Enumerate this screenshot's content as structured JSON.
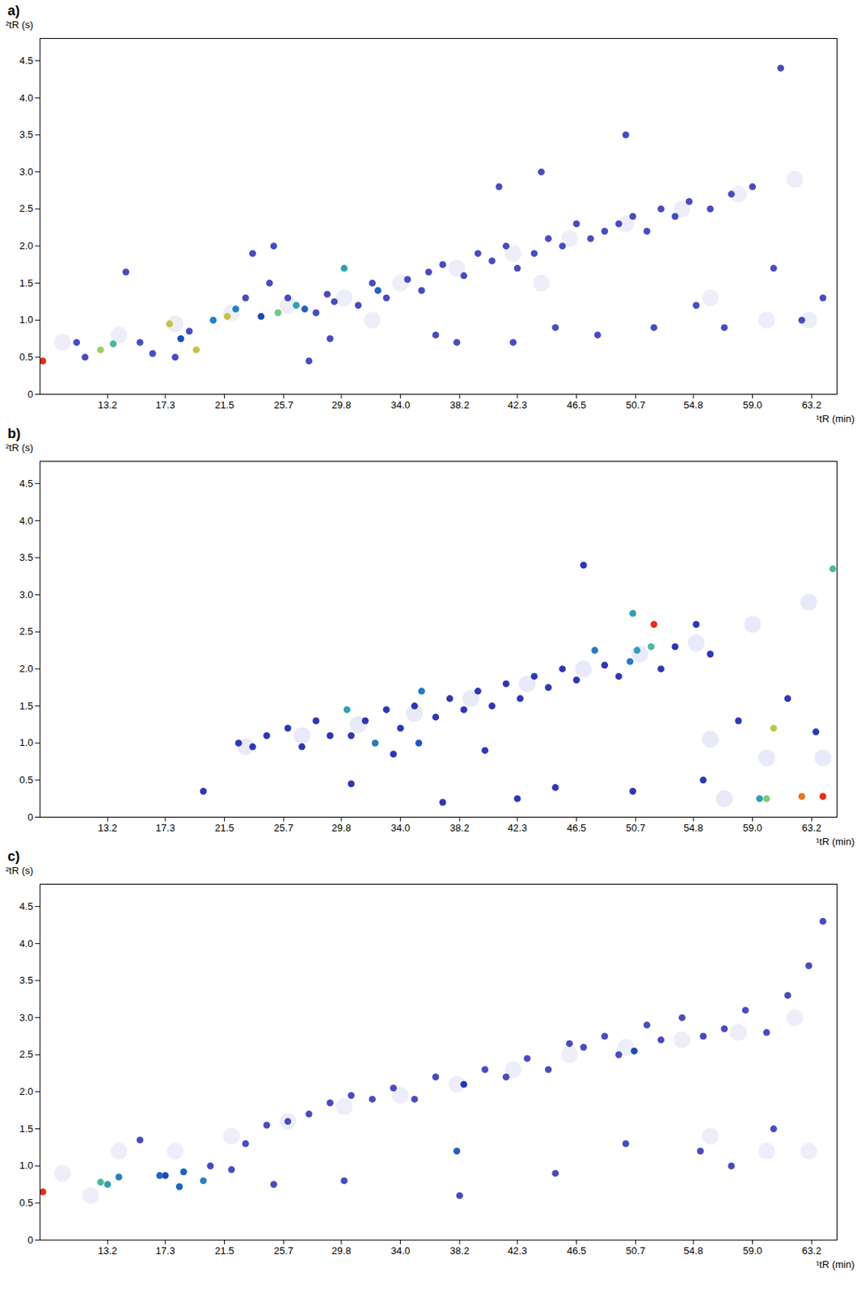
{
  "chart_data": [
    {
      "type": "scatter",
      "title": "a)",
      "x_label": "¹tR (min)",
      "y_label": "²tR (s)",
      "xlim": [
        8.4,
        65.0
      ],
      "ylim": [
        0,
        4.8
      ],
      "xticks": [
        13.2,
        17.3,
        21.5,
        25.7,
        29.8,
        {
          "value": 34,
          "label": "34.0"
        },
        38.2,
        42.3,
        46.5,
        50.7,
        54.8,
        {
          "value": 59,
          "label": "59.0"
        },
        63.2
      ],
      "yticks": [
        0,
        0.5,
        {
          "value": 1,
          "label": "1.0"
        },
        1.5,
        {
          "value": 2,
          "label": "2.0"
        },
        2.5,
        {
          "value": 3,
          "label": "3.0"
        },
        3.5,
        {
          "value": 4,
          "label": "4.0"
        },
        4.5
      ],
      "x": [
        8.6,
        12.7,
        13.6,
        17.6,
        18.4,
        19.5,
        20.7,
        21.7,
        22.3,
        24.1,
        25.3,
        26.6,
        27.2,
        30.0,
        32.4,
        11.0,
        11.6,
        15.5,
        16.4,
        18.0,
        19.0,
        23.0,
        23.5,
        24.7,
        26.0,
        28.0,
        28.8,
        29.3,
        31.0,
        32.0,
        33.0,
        34.5,
        35.5,
        36.0,
        37.0,
        38.5,
        39.5,
        40.5,
        41.5,
        42.3,
        43.5,
        44.5,
        45.5,
        46.5,
        47.5,
        48.5,
        49.5,
        50.5,
        51.5,
        52.5,
        53.5,
        54.5,
        56.0,
        57.5,
        59.0,
        61.0,
        50.0,
        44.0,
        41.0,
        36.5,
        38.0,
        42.0,
        45.0,
        48.0,
        52.0,
        55.0,
        57.0,
        60.5,
        62.5,
        64.0,
        29.0,
        14.5,
        25.0,
        27.5,
        10,
        14,
        18,
        22,
        26,
        30,
        34,
        38,
        42,
        46,
        50,
        54,
        58,
        62,
        56,
        60,
        63,
        44,
        32
      ],
      "y": [
        0.45,
        0.6,
        0.68,
        0.95,
        0.75,
        0.6,
        1.0,
        1.05,
        1.15,
        1.05,
        1.1,
        1.2,
        1.15,
        1.7,
        1.4,
        0.7,
        0.5,
        0.7,
        0.55,
        0.5,
        0.85,
        1.3,
        1.9,
        1.5,
        1.3,
        1.1,
        1.35,
        1.25,
        1.2,
        1.5,
        1.3,
        1.55,
        1.4,
        1.65,
        1.75,
        1.6,
        1.9,
        1.8,
        2.0,
        1.7,
        1.9,
        2.1,
        2.0,
        2.3,
        2.1,
        2.2,
        2.3,
        2.4,
        2.2,
        2.5,
        2.4,
        2.6,
        2.5,
        2.7,
        2.8,
        4.4,
        3.5,
        3.0,
        2.8,
        0.8,
        0.7,
        0.7,
        0.9,
        0.8,
        0.9,
        1.2,
        0.9,
        1.7,
        1.0,
        1.3,
        0.75,
        1.65,
        2.0,
        0.45,
        0.7,
        0.8,
        0.95,
        1.1,
        1.2,
        1.3,
        1.5,
        1.7,
        1.9,
        2.1,
        2.3,
        2.5,
        2.7,
        2.9,
        1.3,
        1.0,
        1.0,
        1.5,
        1.0
      ],
      "intensity": [
        100,
        80,
        70,
        85,
        50,
        85,
        60,
        85,
        60,
        50,
        75,
        65,
        55,
        65,
        55,
        35,
        35,
        35,
        35,
        35,
        35,
        35,
        35,
        35,
        35,
        35,
        35,
        35,
        35,
        35,
        35,
        35,
        35,
        35,
        35,
        35,
        35,
        35,
        35,
        35,
        35,
        35,
        35,
        35,
        35,
        35,
        35,
        35,
        35,
        35,
        35,
        35,
        35,
        35,
        35,
        35,
        35,
        35,
        35,
        35,
        35,
        35,
        35,
        35,
        35,
        35,
        35,
        35,
        35,
        35,
        35,
        35,
        35,
        35,
        12,
        12,
        12,
        12,
        12,
        12,
        12,
        12,
        12,
        12,
        12,
        12,
        12,
        12,
        12,
        12,
        12,
        12,
        12
      ]
    },
    {
      "type": "scatter",
      "title": "b)",
      "x_label": "¹tR (min)",
      "y_label": "²tR (s)",
      "xlim": [
        8.4,
        65.0
      ],
      "ylim": [
        0,
        4.8
      ],
      "xticks": [
        13.2,
        17.3,
        21.5,
        25.7,
        29.8,
        {
          "value": 34,
          "label": "34.0"
        },
        38.2,
        42.3,
        46.5,
        50.7,
        54.8,
        {
          "value": 59,
          "label": "59.0"
        },
        63.2
      ],
      "yticks": [
        0,
        0.5,
        {
          "value": 1,
          "label": "1.0"
        },
        1.5,
        {
          "value": 2,
          "label": "2.0"
        },
        2.5,
        {
          "value": 3,
          "label": "3.0"
        },
        3.5,
        {
          "value": 4,
          "label": "4.0"
        },
        4.5
      ],
      "x": [
        30.2,
        32.2,
        35.5,
        35.3,
        47.8,
        50.3,
        50.5,
        50.8,
        51.8,
        52.0,
        60.5,
        64.7,
        60.0,
        62.5,
        64.0,
        59.5,
        22.5,
        23.5,
        24.5,
        26.0,
        27.0,
        28.0,
        29.0,
        30.5,
        31.5,
        33.0,
        34.0,
        35.0,
        36.5,
        37.5,
        38.5,
        39.5,
        40.5,
        41.5,
        42.5,
        43.5,
        44.5,
        45.5,
        46.5,
        48.5,
        49.5,
        52.5,
        53.5,
        55.0,
        56.0,
        47.0,
        58.0,
        61.5,
        30.5,
        37.0,
        42.3,
        45.0,
        50.5,
        55.5,
        20.0,
        63.5,
        33.5,
        40.0,
        23,
        27,
        31,
        35,
        39,
        43,
        47,
        51,
        55,
        59,
        63,
        56,
        60,
        64,
        57
      ],
      "y": [
        1.45,
        1.0,
        1.7,
        1.0,
        2.25,
        2.1,
        2.75,
        2.25,
        2.3,
        2.6,
        1.2,
        3.35,
        0.25,
        0.28,
        0.28,
        0.25,
        1.0,
        0.95,
        1.1,
        1.2,
        0.95,
        1.3,
        1.1,
        1.1,
        1.3,
        1.45,
        1.2,
        1.5,
        1.35,
        1.6,
        1.45,
        1.7,
        1.5,
        1.8,
        1.6,
        1.9,
        1.75,
        2.0,
        1.85,
        2.05,
        1.9,
        2.0,
        2.3,
        2.6,
        2.2,
        3.4,
        1.3,
        1.6,
        0.45,
        0.2,
        0.25,
        0.4,
        0.35,
        0.5,
        0.35,
        1.15,
        0.85,
        0.9,
        0.95,
        1.1,
        1.25,
        1.4,
        1.6,
        1.8,
        2.0,
        2.2,
        2.35,
        2.6,
        2.9,
        1.05,
        0.8,
        0.8,
        0.25
      ],
      "intensity": [
        55,
        50,
        50,
        45,
        50,
        50,
        55,
        55,
        60,
        85,
        70,
        60,
        65,
        80,
        85,
        55,
        35,
        35,
        35,
        35,
        35,
        35,
        35,
        35,
        35,
        35,
        35,
        35,
        35,
        35,
        35,
        35,
        35,
        35,
        35,
        35,
        35,
        35,
        35,
        35,
        35,
        35,
        35,
        35,
        35,
        35,
        35,
        35,
        35,
        35,
        35,
        35,
        35,
        35,
        35,
        35,
        35,
        35,
        12,
        12,
        12,
        12,
        12,
        12,
        12,
        12,
        12,
        12,
        12,
        12,
        12,
        12,
        12
      ]
    },
    {
      "type": "scatter",
      "title": "c)",
      "x_label": "¹tR (min)",
      "y_label": "²tR (s)",
      "xlim": [
        8.4,
        65.0
      ],
      "ylim": [
        0,
        4.8
      ],
      "xticks": [
        13.2,
        17.3,
        21.5,
        25.7,
        29.8,
        {
          "value": 34,
          "label": "34.0"
        },
        38.2,
        42.3,
        46.5,
        50.7,
        54.8,
        {
          "value": 59,
          "label": "59.0"
        },
        63.2
      ],
      "yticks": [
        0,
        0.5,
        {
          "value": 1,
          "label": "1.0"
        },
        1.5,
        {
          "value": 2,
          "label": "2.0"
        },
        2.5,
        {
          "value": 3,
          "label": "3.0"
        },
        3.5,
        {
          "value": 4,
          "label": "4.0"
        },
        4.5
      ],
      "x": [
        8.6,
        12.7,
        13.2,
        14.0,
        16.9,
        17.3,
        18.3,
        18.6,
        20.0,
        38.0,
        38.5,
        50.6,
        15.5,
        20.5,
        22.0,
        23.0,
        24.5,
        26.0,
        27.5,
        29.0,
        30.5,
        32.0,
        33.5,
        35.0,
        36.5,
        40.0,
        41.5,
        43.0,
        44.5,
        46.0,
        47.0,
        48.5,
        49.5,
        51.5,
        52.5,
        54.0,
        55.5,
        57.0,
        58.5,
        60.0,
        61.5,
        63.0,
        64.0,
        60.5,
        55.3,
        57.5,
        38.2,
        45.0,
        50.0,
        25.0,
        30.0,
        10,
        14,
        18,
        22,
        26,
        30,
        34,
        38,
        42,
        46,
        50,
        54,
        58,
        62,
        60,
        63,
        56,
        12
      ],
      "y": [
        0.65,
        0.78,
        0.75,
        0.85,
        0.87,
        0.87,
        0.72,
        0.92,
        0.8,
        1.2,
        2.1,
        2.55,
        1.35,
        1.0,
        0.95,
        1.3,
        1.55,
        1.6,
        1.7,
        1.85,
        1.95,
        1.9,
        2.05,
        1.9,
        2.2,
        2.3,
        2.2,
        2.45,
        2.3,
        2.65,
        2.6,
        2.75,
        2.5,
        2.9,
        2.7,
        3.0,
        2.75,
        2.85,
        3.1,
        2.8,
        3.3,
        3.7,
        4.3,
        1.5,
        1.2,
        1.0,
        0.6,
        0.9,
        1.3,
        0.75,
        0.8,
        0.9,
        1.2,
        1.2,
        1.4,
        1.6,
        1.8,
        1.95,
        2.1,
        2.3,
        2.5,
        2.6,
        2.7,
        2.8,
        3.0,
        1.2,
        1.2,
        1.4,
        0.6
      ],
      "intensity": [
        100,
        70,
        65,
        60,
        55,
        50,
        55,
        55,
        60,
        55,
        45,
        50,
        35,
        35,
        35,
        35,
        35,
        35,
        35,
        35,
        35,
        35,
        35,
        35,
        35,
        35,
        35,
        35,
        35,
        35,
        35,
        35,
        35,
        35,
        35,
        35,
        35,
        35,
        35,
        35,
        35,
        35,
        35,
        35,
        35,
        35,
        35,
        35,
        35,
        35,
        35,
        12,
        12,
        12,
        12,
        12,
        12,
        12,
        12,
        12,
        12,
        12,
        12,
        12,
        12,
        12,
        12,
        12,
        12
      ]
    }
  ]
}
